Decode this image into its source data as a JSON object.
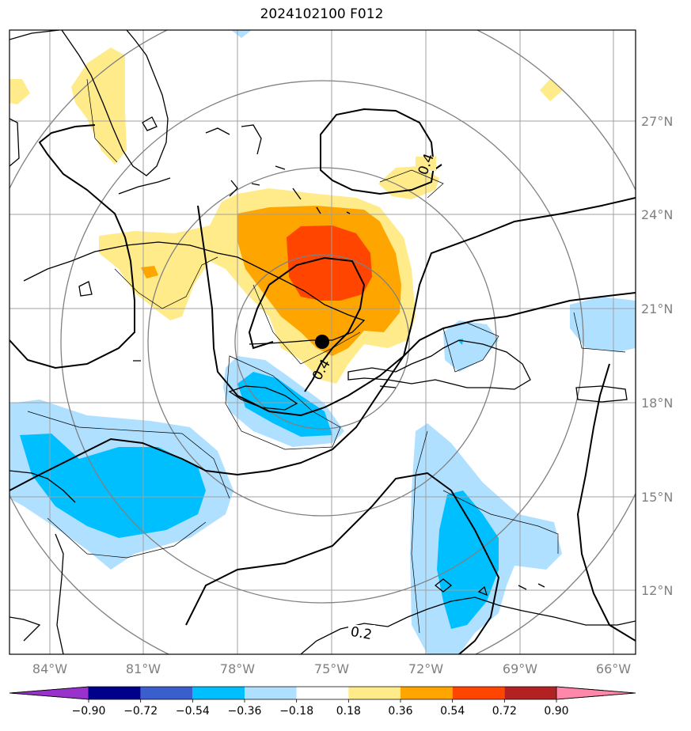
{
  "title": "2024102100 F012",
  "map": {
    "lat_labels": [
      "27°N",
      "24°N",
      "21°N",
      "18°N",
      "15°N",
      "12°N"
    ],
    "lon_labels": [
      "84°W",
      "81°W",
      "78°W",
      "75°W",
      "72°W",
      "69°W",
      "66°W"
    ],
    "contour_labels": [
      "0.4",
      "0.4",
      "0.2"
    ],
    "center_marker": "storm-center"
  },
  "colorbar": {
    "ticks": [
      "−0.90",
      "−0.72",
      "−0.54",
      "−0.36",
      "−0.18",
      "0.18",
      "0.36",
      "0.54",
      "0.72",
      "0.90"
    ],
    "colors": [
      "#9932cc",
      "#00008b",
      "#3a5fcd",
      "#00bfff",
      "#b0e0ff",
      "#ffffff",
      "#ffeb8a",
      "#ffa500",
      "#ff4500",
      "#b22222",
      "#ff88aa"
    ]
  },
  "colors": {
    "light_blue": "#b0e0ff",
    "blue": "#00bfff",
    "light_yellow": "#ffeb8a",
    "orange": "#ffa500",
    "red_orange": "#ff4500",
    "grid": "#a0a0a0",
    "ring": "#808080"
  }
}
